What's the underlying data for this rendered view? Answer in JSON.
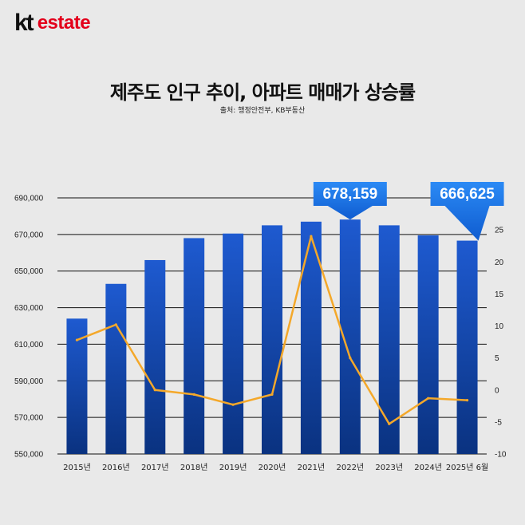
{
  "brand": {
    "kt": "kt",
    "word": "estate"
  },
  "header": {
    "title": "제주도 인구 추이, 아파트 매매가 상승률",
    "subtitle": "출처: 행정안전부, KB부동산"
  },
  "colors": {
    "bar_top": "#1e5ad0",
    "bar_bottom": "#0a3280",
    "line": "#f4a82a",
    "brand_red": "#e3001b",
    "callout": "#1a74e8"
  },
  "chart_data": {
    "type": "bar",
    "categories": [
      "2015년",
      "2016년",
      "2017년",
      "2018년",
      "2019년",
      "2020년",
      "2021년",
      "2022년",
      "2023년",
      "2024년",
      "2025년 6월"
    ],
    "series": [
      {
        "axis": "left",
        "type": "bar",
        "values": [
          624000,
          643000,
          656000,
          668000,
          670500,
          675000,
          677000,
          678159,
          675000,
          669500,
          666625
        ]
      },
      {
        "axis": "right",
        "type": "line",
        "values": [
          7.8,
          10.2,
          0,
          -0.7,
          -2.3,
          -0.7,
          24,
          5,
          -5.3,
          -1.3,
          -1.6
        ]
      }
    ],
    "ylim_left": [
      550000,
      690000
    ],
    "yticks_left": [
      "690,000",
      "670,000",
      "650,000",
      "630,000",
      "610,000",
      "590,000",
      "570,000",
      "550,000"
    ],
    "ylim_right": [
      -10,
      30
    ],
    "yticks_right": [
      "30",
      "25",
      "20",
      "15",
      "10",
      "5",
      "0",
      "-5",
      "-10"
    ],
    "grid": true,
    "callouts": [
      {
        "category_index": 7,
        "label": "678,159"
      },
      {
        "category_index": 10,
        "label": "666,625"
      }
    ]
  }
}
